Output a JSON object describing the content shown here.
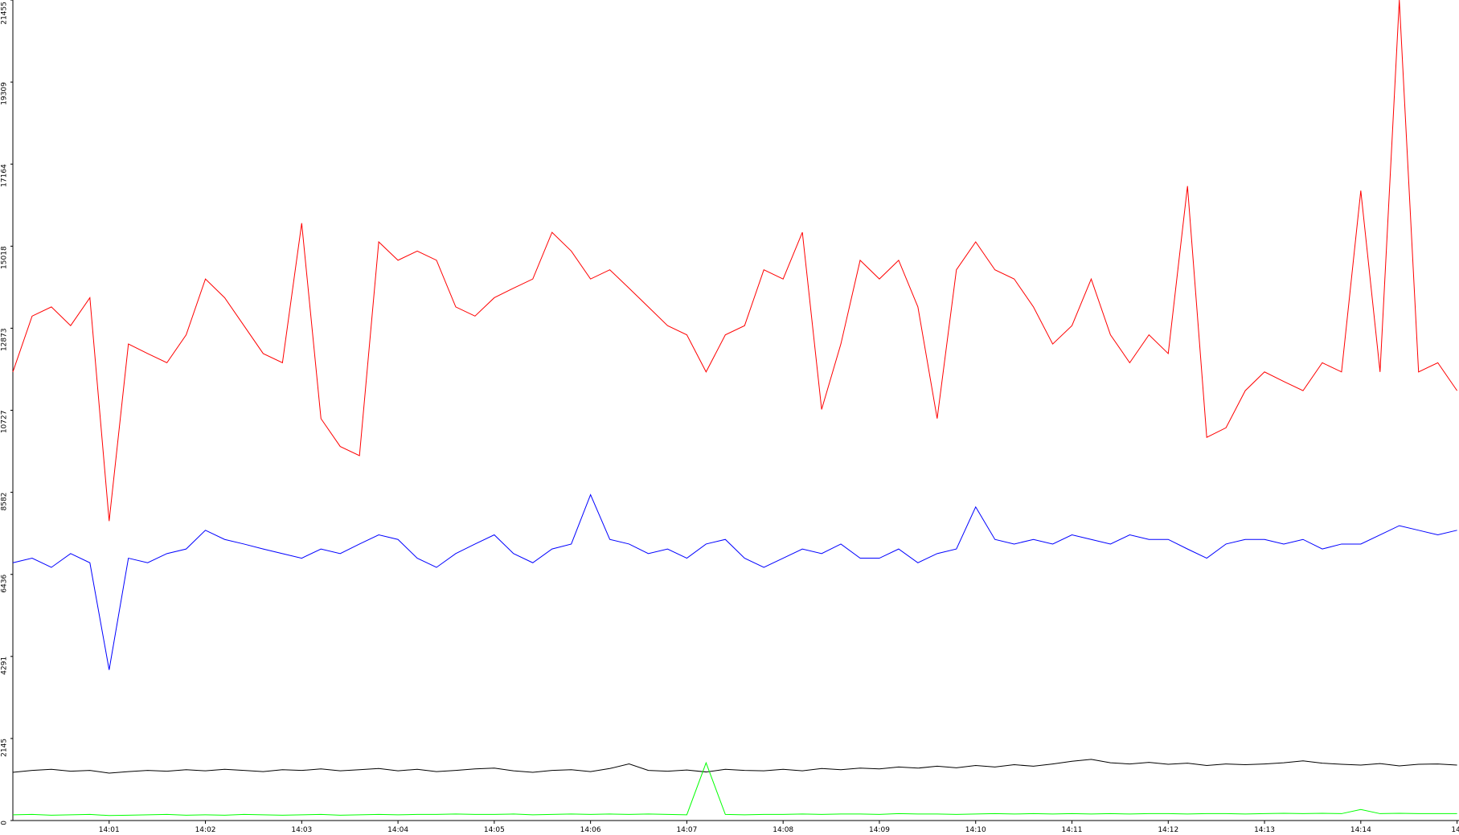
{
  "chart_data": {
    "type": "line",
    "x": [
      840,
      840.2,
      840.4,
      840.6,
      840.8,
      841,
      841.2,
      841.4,
      841.6,
      841.8,
      842,
      842.2,
      842.4,
      842.6,
      842.8,
      843,
      843.2,
      843.4,
      843.6,
      843.8,
      844,
      844.2,
      844.4,
      844.6,
      844.8,
      845,
      845.2,
      845.4,
      845.6,
      845.8,
      846,
      846.2,
      846.4,
      846.6,
      846.8,
      847,
      847.2,
      847.4,
      847.6,
      847.8,
      848,
      848.2,
      848.4,
      848.6,
      848.8,
      849,
      849.2,
      849.4,
      849.6,
      849.8,
      850,
      850.2,
      850.4,
      850.6,
      850.8,
      851,
      851.2,
      851.4,
      851.6,
      851.8,
      852,
      852.2,
      852.4,
      852.6,
      852.8,
      853,
      853.2,
      853.4,
      853.6,
      853.8,
      854,
      854.2,
      854.4,
      854.6,
      854.8,
      855
    ],
    "series": [
      {
        "color": "#ff0000",
        "values": [
          11730,
          13190,
          13430,
          12940,
          13670,
          7830,
          12460,
          12210,
          11970,
          12700,
          14160,
          13670,
          12940,
          12210,
          11970,
          15620,
          10510,
          9780,
          9540,
          15130,
          14650,
          14890,
          14650,
          13430,
          13190,
          13670,
          13920,
          14160,
          15380,
          14890,
          14160,
          14400,
          13920,
          13430,
          12940,
          12700,
          11730,
          12700,
          12940,
          14400,
          14160,
          15380,
          10750,
          12460,
          14650,
          14160,
          14650,
          13430,
          10510,
          14400,
          15130,
          14400,
          14160,
          13430,
          12460,
          12940,
          14160,
          12700,
          11970,
          12700,
          12210,
          16590,
          10020,
          10270,
          11240,
          11730,
          11480,
          11240,
          11970,
          11730,
          16470,
          11730,
          21455,
          11730,
          11970,
          11240
        ]
      },
      {
        "color": "#0000ff",
        "values": [
          6740,
          6860,
          6620,
          6980,
          6740,
          3940,
          6860,
          6740,
          6980,
          7100,
          7590,
          7350,
          7230,
          7100,
          6980,
          6860,
          7100,
          6980,
          7230,
          7470,
          7350,
          6860,
          6620,
          6980,
          7230,
          7470,
          6980,
          6740,
          7100,
          7230,
          8520,
          7350,
          7230,
          6980,
          7100,
          6860,
          7230,
          7350,
          6860,
          6620,
          6860,
          7100,
          6980,
          7230,
          6860,
          6860,
          7100,
          6740,
          6980,
          7100,
          8200,
          7350,
          7230,
          7350,
          7230,
          7470,
          7350,
          7230,
          7470,
          7350,
          7350,
          7100,
          6860,
          7230,
          7350,
          7350,
          7230,
          7350,
          7100,
          7230,
          7230,
          7470,
          7710,
          7590,
          7470,
          7590
        ]
      },
      {
        "color": "#000000",
        "values": [
          1260,
          1310,
          1340,
          1290,
          1310,
          1240,
          1280,
          1310,
          1290,
          1330,
          1300,
          1340,
          1310,
          1280,
          1330,
          1310,
          1350,
          1300,
          1330,
          1360,
          1300,
          1340,
          1280,
          1310,
          1350,
          1370,
          1300,
          1260,
          1310,
          1330,
          1280,
          1360,
          1480,
          1310,
          1290,
          1320,
          1270,
          1340,
          1310,
          1300,
          1340,
          1300,
          1360,
          1330,
          1370,
          1350,
          1400,
          1370,
          1420,
          1380,
          1440,
          1400,
          1460,
          1420,
          1480,
          1550,
          1600,
          1510,
          1480,
          1520,
          1470,
          1500,
          1440,
          1480,
          1460,
          1480,
          1510,
          1560,
          1500,
          1470,
          1450,
          1490,
          1430,
          1470,
          1480,
          1450
        ]
      },
      {
        "color": "#00ff00",
        "values": [
          150,
          160,
          140,
          150,
          160,
          130,
          140,
          150,
          160,
          140,
          150,
          140,
          160,
          150,
          140,
          150,
          160,
          140,
          150,
          160,
          150,
          160,
          160,
          170,
          160,
          160,
          170,
          150,
          160,
          170,
          160,
          170,
          160,
          170,
          160,
          150,
          1510,
          160,
          150,
          160,
          160,
          170,
          160,
          170,
          170,
          160,
          180,
          170,
          170,
          160,
          170,
          180,
          170,
          180,
          170,
          180,
          170,
          180,
          170,
          180,
          180,
          170,
          180,
          180,
          170,
          180,
          190,
          180,
          190,
          180,
          290,
          180,
          190,
          180,
          180,
          180
        ]
      }
    ],
    "xlim": [
      840,
      855.02
    ],
    "xticks": [
      {
        "value": 841,
        "label": "14:01"
      },
      {
        "value": 842,
        "label": "14:02"
      },
      {
        "value": 843,
        "label": "14:03"
      },
      {
        "value": 844,
        "label": "14:04"
      },
      {
        "value": 845,
        "label": "14:05"
      },
      {
        "value": 846,
        "label": "14:06"
      },
      {
        "value": 847,
        "label": "14:07"
      },
      {
        "value": 848,
        "label": "14:08"
      },
      {
        "value": 849,
        "label": "14:09"
      },
      {
        "value": 850,
        "label": "14:10"
      },
      {
        "value": 851,
        "label": "14:11"
      },
      {
        "value": 852,
        "label": "14:12"
      },
      {
        "value": 853,
        "label": "14:13"
      },
      {
        "value": 854,
        "label": "14:14"
      },
      {
        "value": 855,
        "label": "14:"
      }
    ],
    "ylim": [
      0,
      21455
    ],
    "yticks": [
      0,
      2145,
      4291,
      6436,
      8582,
      10727,
      12873,
      15018,
      17164,
      19309,
      21455
    ],
    "grid": false
  }
}
